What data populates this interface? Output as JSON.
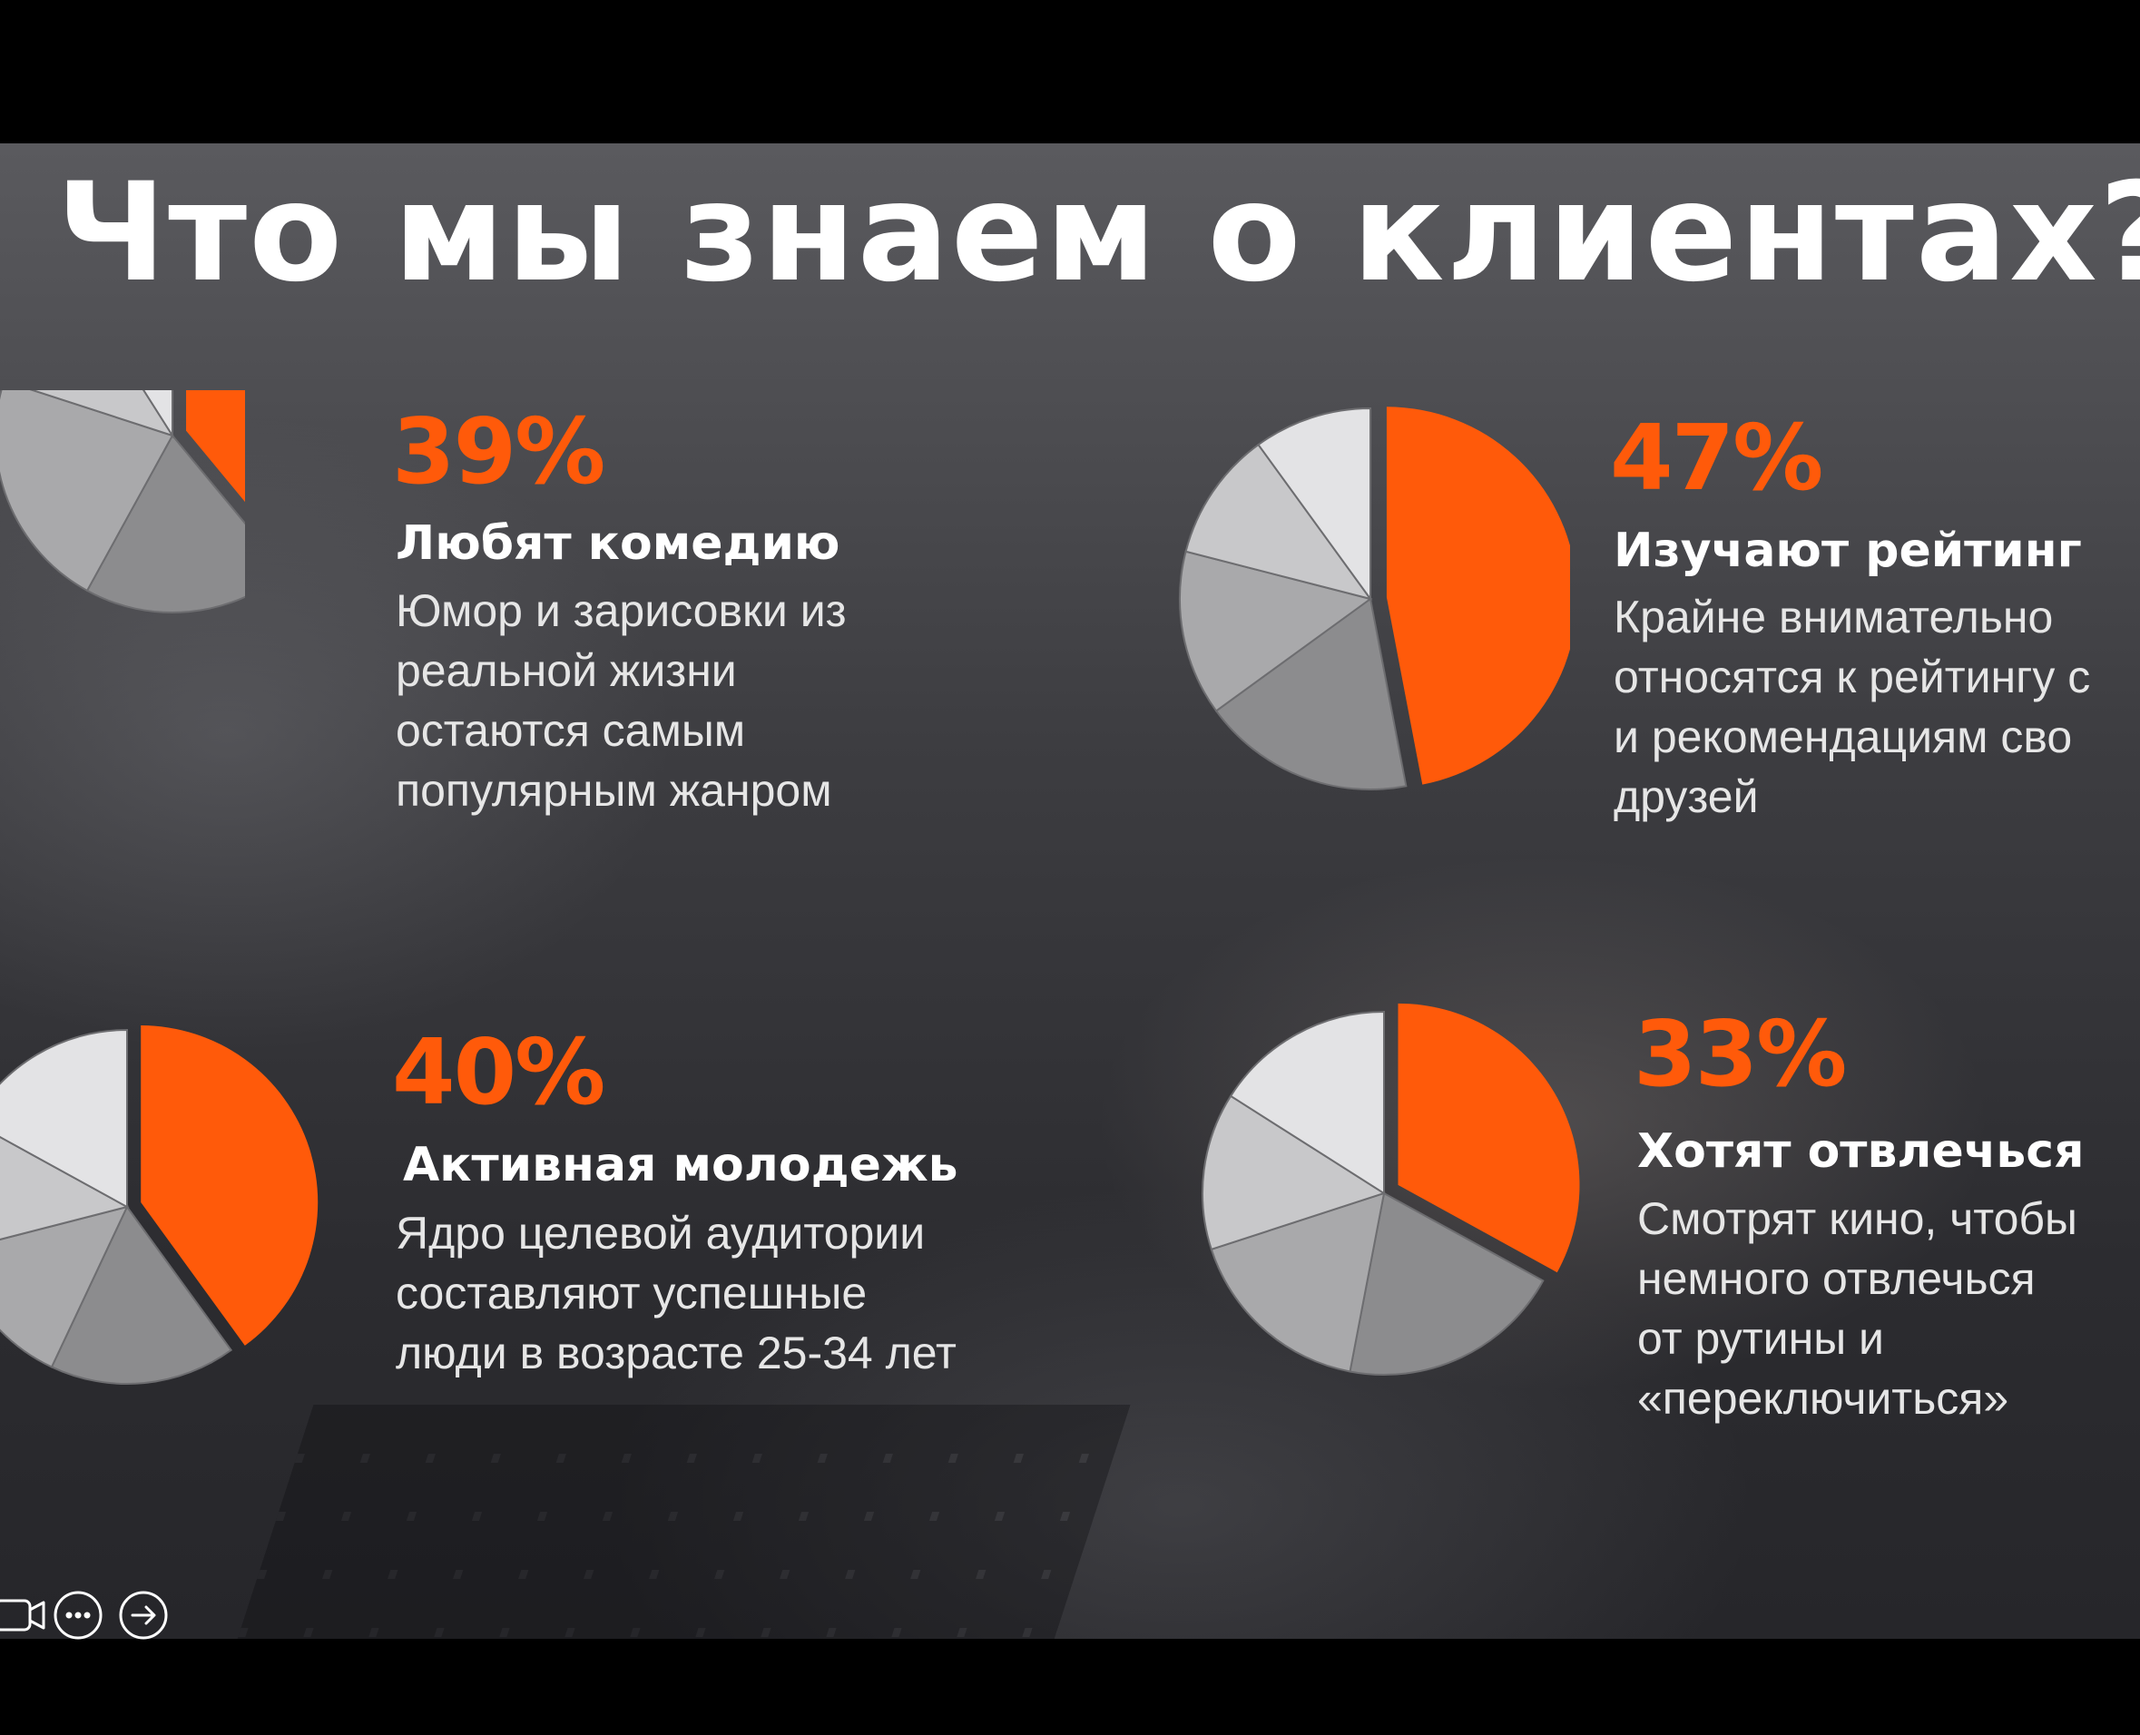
{
  "title": "Что мы знаем о клиентах?",
  "colors": {
    "accent": "#ff5a0a",
    "slice_gray_1": "#e3e3e5",
    "slice_gray_2": "#c8c8ca",
    "slice_gray_3": "#a9a9ab",
    "slice_gray_4": "#8c8c8e",
    "background": "#3a3a3e"
  },
  "cards": [
    {
      "percent": "39%",
      "heading": "Любят комедию",
      "lines": [
        "Юмор и зарисовки из",
        "реальной жизни",
        "остаются самым",
        "популярным жанром"
      ]
    },
    {
      "percent": "47%",
      "heading": "Изучают рейтинг",
      "lines": [
        "Крайне внимательно",
        "относятся к рейтингу с",
        "и рекомендациям сво",
        "друзей"
      ]
    },
    {
      "percent": "40%",
      "heading": "Активная молодежь",
      "lines": [
        "Ядро целевой аудитории",
        "составляют успешные",
        "люди в возрасте 25-34 лет"
      ]
    },
    {
      "percent": "33%",
      "heading": "Хотят отвлечься",
      "lines": [
        "Смотрят кино, чтобы",
        "немного отвлечься",
        "от рутины и",
        "«переключиться»"
      ]
    }
  ],
  "chart_data": [
    {
      "type": "pie",
      "values": [
        39,
        19,
        22,
        11,
        9
      ]
    },
    {
      "type": "pie",
      "values": [
        47,
        18,
        14,
        11,
        10
      ]
    },
    {
      "type": "pie",
      "values": [
        40,
        17,
        14,
        12,
        17
      ]
    },
    {
      "type": "pie",
      "values": [
        33,
        20,
        17,
        14,
        16
      ]
    }
  ],
  "controls": [
    {
      "name": "camera-icon"
    },
    {
      "name": "more-options-icon"
    },
    {
      "name": "next-arrow-icon"
    }
  ]
}
